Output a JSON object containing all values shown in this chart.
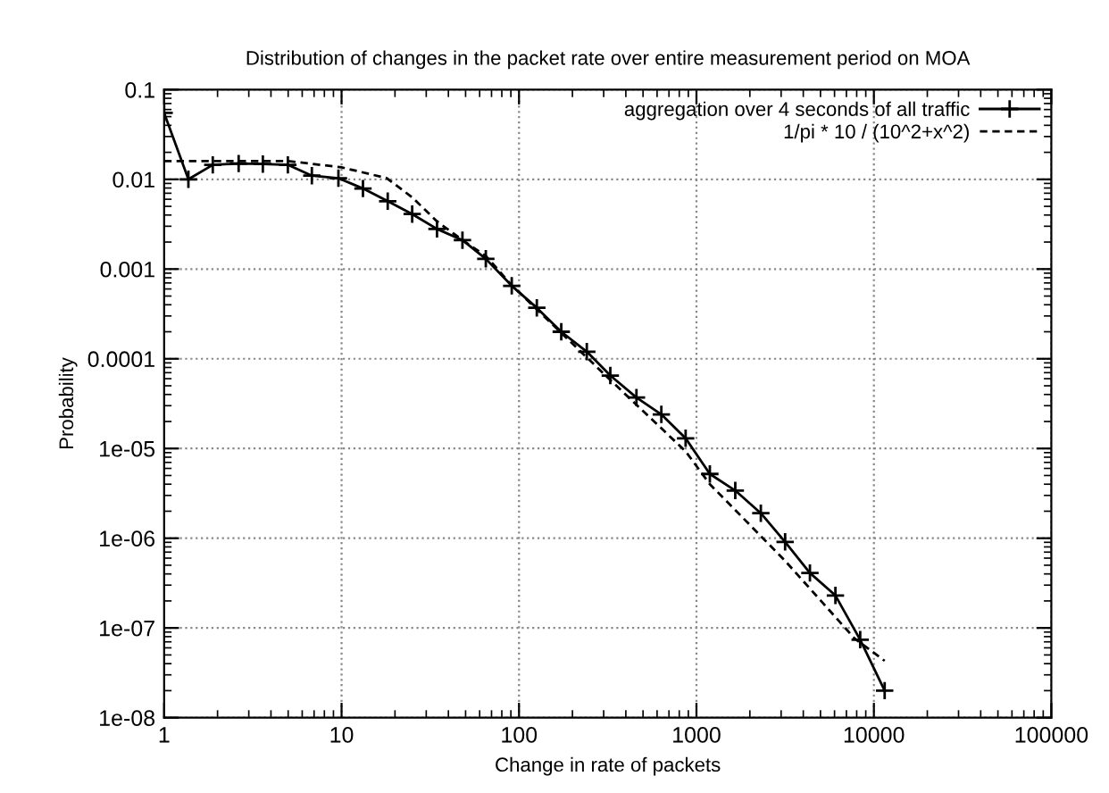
{
  "chart_data": {
    "type": "line",
    "title": "Distribution of changes in the packet rate over entire measurement period on MOA",
    "xlabel": "Change in rate of packets",
    "ylabel": "Probability",
    "log": "xy",
    "grid": true,
    "legend": "top right",
    "xlim": [
      1,
      100000
    ],
    "xticks": [
      1,
      10,
      100,
      1000,
      10000,
      100000
    ],
    "ylim": [
      1e-08,
      0.1
    ],
    "yticks": [
      {
        "value": 1e-08,
        "label": "1e-08"
      },
      {
        "value": 1e-07,
        "label": "1e-07"
      },
      {
        "value": 1e-06,
        "label": "1e-06"
      },
      {
        "value": 1e-05,
        "label": "1e-05"
      },
      {
        "value": 0.0001,
        "label": "0.0001"
      },
      {
        "value": 0.001,
        "label": "0.001"
      },
      {
        "value": 0.01,
        "label": "0.01"
      },
      {
        "value": 0.1,
        "label": "0.1"
      }
    ],
    "series": [
      {
        "name": "aggregation over 4 seconds of all traffic",
        "color": "#000000",
        "marker": "cross",
        "line_style": "solid",
        "x": [
          1,
          1.37,
          1.88,
          2.63,
          3.6,
          4.98,
          6.8,
          9.6,
          13.2,
          18.2,
          25,
          34.5,
          48,
          65,
          91,
          126,
          173,
          241,
          327,
          459,
          634,
          869,
          1190,
          1655,
          2306,
          3160,
          4360,
          6070,
          8370,
          11500
        ],
        "values": [
          0.055,
          0.01,
          0.0145,
          0.015,
          0.0148,
          0.0145,
          0.011,
          0.0103,
          0.0079,
          0.0057,
          0.0041,
          0.0028,
          0.0021,
          0.0013,
          0.00065,
          0.00037,
          0.0002,
          0.00012,
          6.5e-05,
          3.7e-05,
          2.4e-05,
          1.3e-05,
          5.2e-06,
          3.4e-06,
          1.9e-06,
          9.1e-07,
          4.1e-07,
          2.3e-07,
          7.4e-08,
          2e-08
        ]
      },
      {
        "name": "1/pi * 10 / (10^2+x^2)",
        "color": "#000000",
        "marker": "none",
        "line_style": "dashed",
        "x": [
          1,
          5,
          10,
          18,
          25,
          34.5,
          48,
          65,
          91,
          327,
          869,
          1190,
          3160,
          7800,
          11500
        ],
        "values": [
          0.016,
          0.016,
          0.0136,
          0.0103,
          0.0063,
          0.0034,
          0.0021,
          0.0014,
          0.00066,
          5.8e-05,
          9.3e-06,
          4e-06,
          5.6e-07,
          7.6e-08,
          4.3e-08
        ]
      }
    ]
  }
}
